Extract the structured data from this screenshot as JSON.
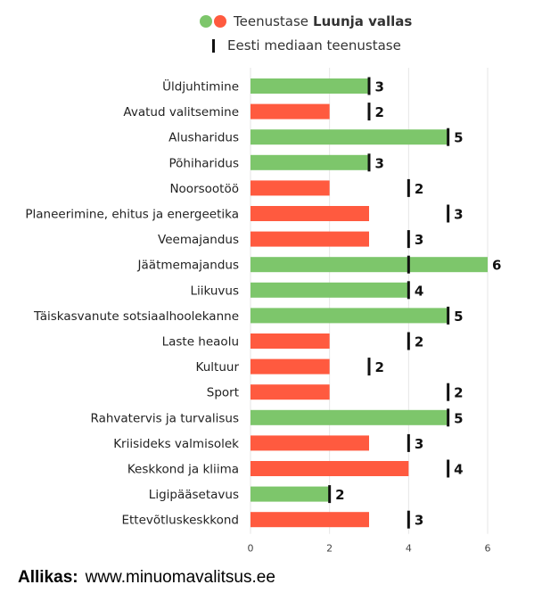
{
  "legend": {
    "service_prefix": "Teenustase",
    "municipality": "Luunja vallas",
    "median_label": "Eesti mediaan teenustase"
  },
  "source": {
    "label": "Allikas:",
    "url": "www.minuomavalitsus.ee"
  },
  "colors": {
    "above_or_equal": "#7dc66b",
    "below": "#ff5a3f",
    "median_marker": "#111111",
    "grid": "#e6e6e6"
  },
  "chart_data": {
    "type": "bar",
    "orientation": "horizontal",
    "xlim": [
      0,
      6
    ],
    "xticks": [
      0,
      2,
      4,
      6
    ],
    "grid": true,
    "categories": [
      "Üldjuhtimine",
      "Avatud valitsemine",
      "Alusharidus",
      "Põhiharidus",
      "Noorsootöö",
      "Planeerimine, ehitus ja energeetika",
      "Veemajandus",
      "Jäätmemajandus",
      "Liikuvus",
      "Täiskasvanute sotsiaalhoolekanne",
      "Laste heaolu",
      "Kultuur",
      "Sport",
      "Rahvatervis ja turvalisus",
      "Kriisideks valmisolek",
      "Keskkond ja kliima",
      "Ligipääsetavus",
      "Ettevõtluskeskkond"
    ],
    "series": [
      {
        "name": "Teenustase Luunja vallas",
        "values": [
          3,
          2,
          5,
          3,
          2,
          3,
          3,
          6,
          4,
          5,
          2,
          2,
          2,
          5,
          3,
          4,
          2,
          3
        ]
      },
      {
        "name": "Eesti mediaan teenustase",
        "values": [
          3,
          3,
          5,
          3,
          4,
          5,
          4,
          4,
          4,
          5,
          4,
          3,
          5,
          5,
          4,
          5,
          2,
          4
        ]
      }
    ]
  }
}
